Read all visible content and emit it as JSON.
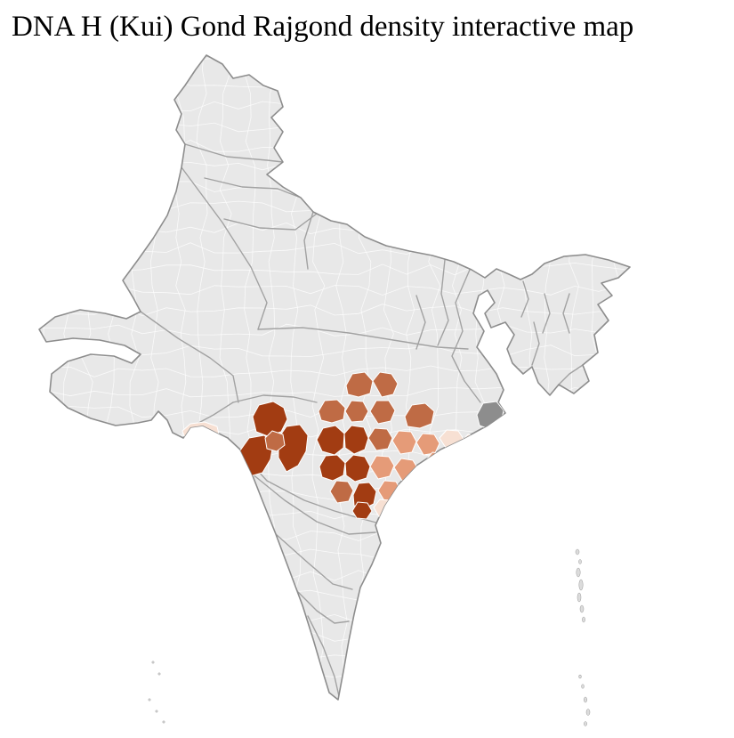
{
  "title": "DNA H (Kui) Gond Rajgond density interactive map",
  "map": {
    "depicts": "India district-level choropleth",
    "palette": {
      "background": "#ffffff",
      "base_land": "#e8e8e8",
      "district_line": "#ffffff",
      "state_line": "#a2a2a2",
      "country_outline": "#8d8d8d",
      "density_highest": "#a23c12",
      "density_high": "#bf6b45",
      "density_medium": "#e59b78",
      "density_low": "#f7e0d3",
      "neutral_district": "#8d8d8d",
      "islands": "#dcdcdc"
    }
  }
}
